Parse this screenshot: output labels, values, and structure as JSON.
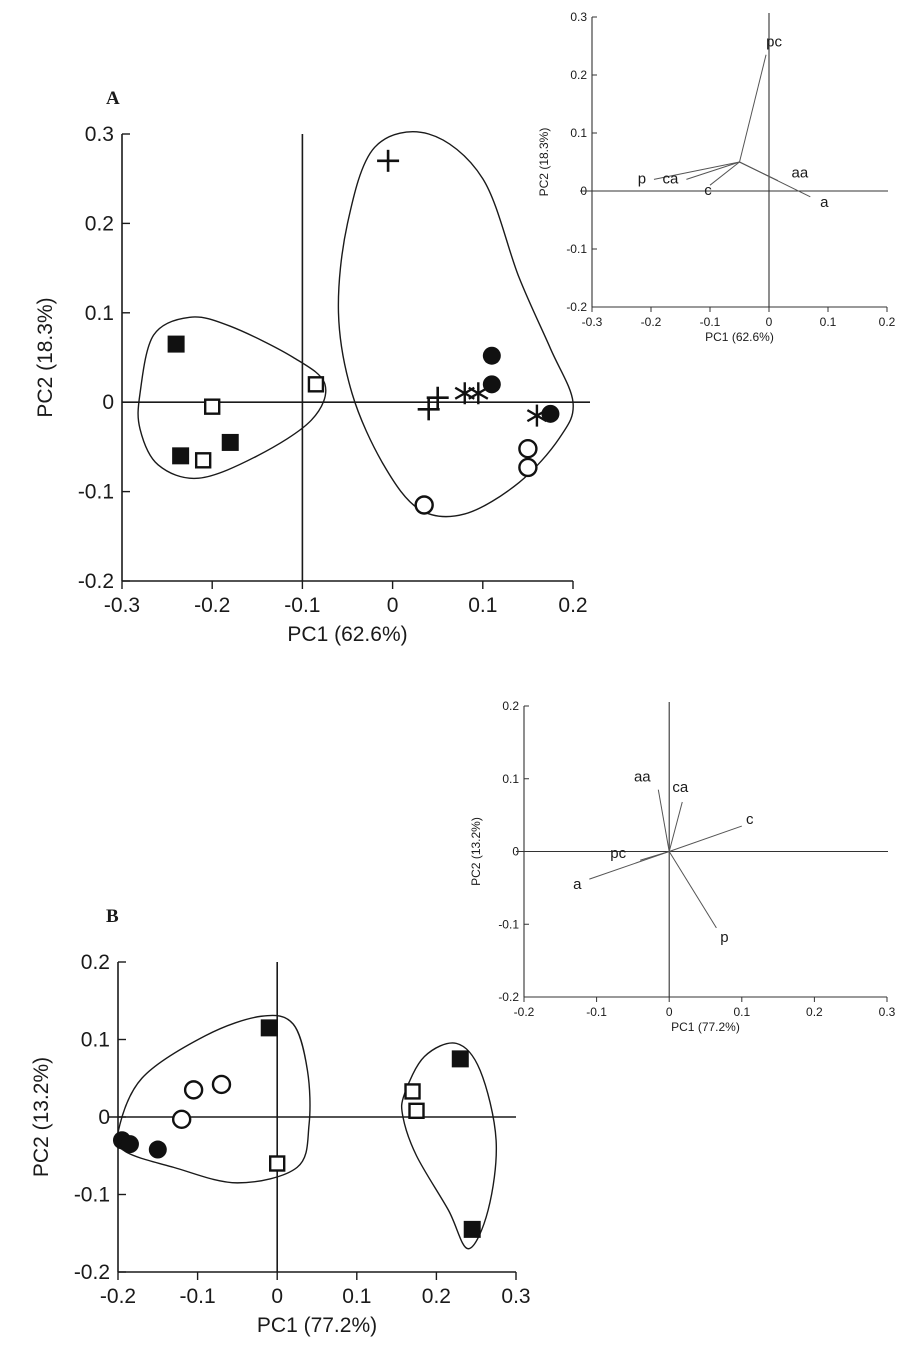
{
  "chart_data": [
    {
      "id": "A",
      "type": "scatter",
      "panel_label": "A",
      "xlabel": "PC1 (62.6%)",
      "ylabel": "PC2 (18.3%)",
      "xlim": [
        -0.3,
        0.2
      ],
      "ylim": [
        -0.2,
        0.3
      ],
      "xticks": [
        "-0.3",
        "-0.2",
        "-0.1",
        "0",
        "0.1",
        "0.2"
      ],
      "yticks": [
        "-0.2",
        "-0.1",
        "0",
        "0.1",
        "0.2",
        "0.3"
      ],
      "series": [
        {
          "marker": "filled-square",
          "points": [
            [
              -0.24,
              0.065
            ],
            [
              -0.235,
              -0.06
            ],
            [
              -0.18,
              -0.045
            ]
          ]
        },
        {
          "marker": "open-square",
          "points": [
            [
              -0.2,
              -0.005
            ],
            [
              -0.21,
              -0.065
            ],
            [
              -0.085,
              0.02
            ]
          ]
        },
        {
          "marker": "plus",
          "points": [
            [
              -0.005,
              0.27
            ],
            [
              0.04,
              -0.008
            ],
            [
              0.05,
              0.005
            ]
          ]
        },
        {
          "marker": "asterisk",
          "points": [
            [
              0.08,
              0.01
            ],
            [
              0.095,
              0.01
            ],
            [
              0.16,
              -0.015
            ]
          ]
        },
        {
          "marker": "filled-circle",
          "points": [
            [
              0.11,
              0.052
            ],
            [
              0.11,
              0.02
            ],
            [
              0.175,
              -0.013
            ]
          ]
        },
        {
          "marker": "open-circle",
          "points": [
            [
              0.15,
              -0.052
            ],
            [
              0.15,
              -0.073
            ],
            [
              0.035,
              -0.115
            ]
          ]
        }
      ],
      "hulls": [
        [
          [
            -0.28,
            0.01
          ],
          [
            -0.265,
            0.075
          ],
          [
            -0.225,
            0.095
          ],
          [
            -0.18,
            0.085
          ],
          [
            -0.11,
            0.05
          ],
          [
            -0.075,
            0.02
          ],
          [
            -0.09,
            -0.02
          ],
          [
            -0.15,
            -0.06
          ],
          [
            -0.215,
            -0.085
          ],
          [
            -0.26,
            -0.07
          ],
          [
            -0.28,
            -0.03
          ]
        ],
        [
          [
            -0.05,
            0.2
          ],
          [
            -0.02,
            0.285
          ],
          [
            0.04,
            0.3
          ],
          [
            0.1,
            0.25
          ],
          [
            0.14,
            0.14
          ],
          [
            0.175,
            0.06
          ],
          [
            0.2,
            0.0
          ],
          [
            0.185,
            -0.04
          ],
          [
            0.14,
            -0.09
          ],
          [
            0.08,
            -0.125
          ],
          [
            0.03,
            -0.12
          ],
          [
            -0.01,
            -0.07
          ],
          [
            -0.045,
            0.01
          ],
          [
            -0.06,
            0.1
          ]
        ]
      ],
      "inset": {
        "xlabel": "PC1 (62.6%)",
        "ylabel": "PC2 (18.3%)",
        "xlim": [
          -0.3,
          0.2
        ],
        "ylim": [
          -0.2,
          0.3
        ],
        "xticks": [
          "-0.3",
          "-0.2",
          "-0.1",
          "0",
          "0.1",
          "0.2"
        ],
        "yticks": [
          "-0.2",
          "-0.1",
          "0",
          "0.1",
          "0.2",
          "0.3"
        ],
        "origin": [
          -0.05,
          0.05
        ],
        "vectors": [
          {
            "name": "pc",
            "end": [
              -0.005,
              0.235
            ]
          },
          {
            "name": "p",
            "end": [
              -0.195,
              0.02
            ]
          },
          {
            "name": "ca",
            "end": [
              -0.14,
              0.02
            ]
          },
          {
            "name": "c",
            "end": [
              -0.1,
              0.01
            ]
          },
          {
            "name": "aa",
            "end": [
              0.015,
              0.018
            ]
          },
          {
            "name": "a",
            "end": [
              0.07,
              -0.01
            ]
          }
        ]
      }
    },
    {
      "id": "B",
      "type": "scatter",
      "panel_label": "B",
      "xlabel": "PC1 (77.2%)",
      "ylabel": "PC2 (13.2%)",
      "xlim": [
        -0.2,
        0.3
      ],
      "ylim": [
        -0.2,
        0.2
      ],
      "xticks": [
        "-0.2",
        "-0.1",
        "0",
        "0.1",
        "0.2",
        "0.3"
      ],
      "yticks": [
        "-0.2",
        "-0.1",
        "0",
        "0.1",
        "0.2"
      ],
      "series": [
        {
          "marker": "filled-square",
          "points": [
            [
              -0.01,
              0.115
            ],
            [
              0.23,
              0.075
            ],
            [
              0.245,
              -0.145
            ]
          ]
        },
        {
          "marker": "open-square",
          "points": [
            [
              0.0,
              -0.06
            ],
            [
              0.17,
              0.033
            ],
            [
              0.175,
              0.008
            ]
          ]
        },
        {
          "marker": "open-circle",
          "points": [
            [
              -0.105,
              0.035
            ],
            [
              -0.07,
              0.042
            ],
            [
              -0.12,
              -0.003
            ]
          ]
        },
        {
          "marker": "filled-circle",
          "points": [
            [
              -0.195,
              -0.03
            ],
            [
              -0.185,
              -0.035
            ],
            [
              -0.15,
              -0.042
            ]
          ]
        }
      ],
      "hulls": [
        [
          [
            -0.2,
            -0.02
          ],
          [
            -0.17,
            0.05
          ],
          [
            -0.09,
            0.105
          ],
          [
            -0.02,
            0.13
          ],
          [
            0.02,
            0.12
          ],
          [
            0.038,
            0.06
          ],
          [
            0.04,
            -0.01
          ],
          [
            0.025,
            -0.065
          ],
          [
            -0.05,
            -0.085
          ],
          [
            -0.13,
            -0.065
          ],
          [
            -0.19,
            -0.045
          ]
        ],
        [
          [
            0.16,
            0.03
          ],
          [
            0.185,
            0.078
          ],
          [
            0.225,
            0.095
          ],
          [
            0.255,
            0.06
          ],
          [
            0.275,
            -0.03
          ],
          [
            0.265,
            -0.12
          ],
          [
            0.24,
            -0.17
          ],
          [
            0.215,
            -0.12
          ],
          [
            0.175,
            -0.05
          ],
          [
            0.158,
            0.0
          ]
        ]
      ],
      "inset": {
        "xlabel": "PC1 (77.2%)",
        "ylabel": "PC2 (13.2%)",
        "xlim": [
          -0.2,
          0.3
        ],
        "ylim": [
          -0.2,
          0.2
        ],
        "xticks": [
          "-0.2",
          "-0.1",
          "0",
          "0.1",
          "0.2",
          "0.3"
        ],
        "yticks": [
          "-0.2",
          "-0.1",
          "0",
          "0.1",
          "0.2"
        ],
        "origin": [
          0.0,
          0.0
        ],
        "vectors": [
          {
            "name": "aa",
            "end": [
              -0.015,
              0.085
            ]
          },
          {
            "name": "ca",
            "end": [
              0.018,
              0.068
            ]
          },
          {
            "name": "c",
            "end": [
              0.1,
              0.035
            ]
          },
          {
            "name": "pc",
            "end": [
              -0.04,
              -0.012
            ]
          },
          {
            "name": "a",
            "end": [
              -0.11,
              -0.038
            ]
          },
          {
            "name": "p",
            "end": [
              0.065,
              -0.105
            ]
          }
        ]
      }
    }
  ]
}
